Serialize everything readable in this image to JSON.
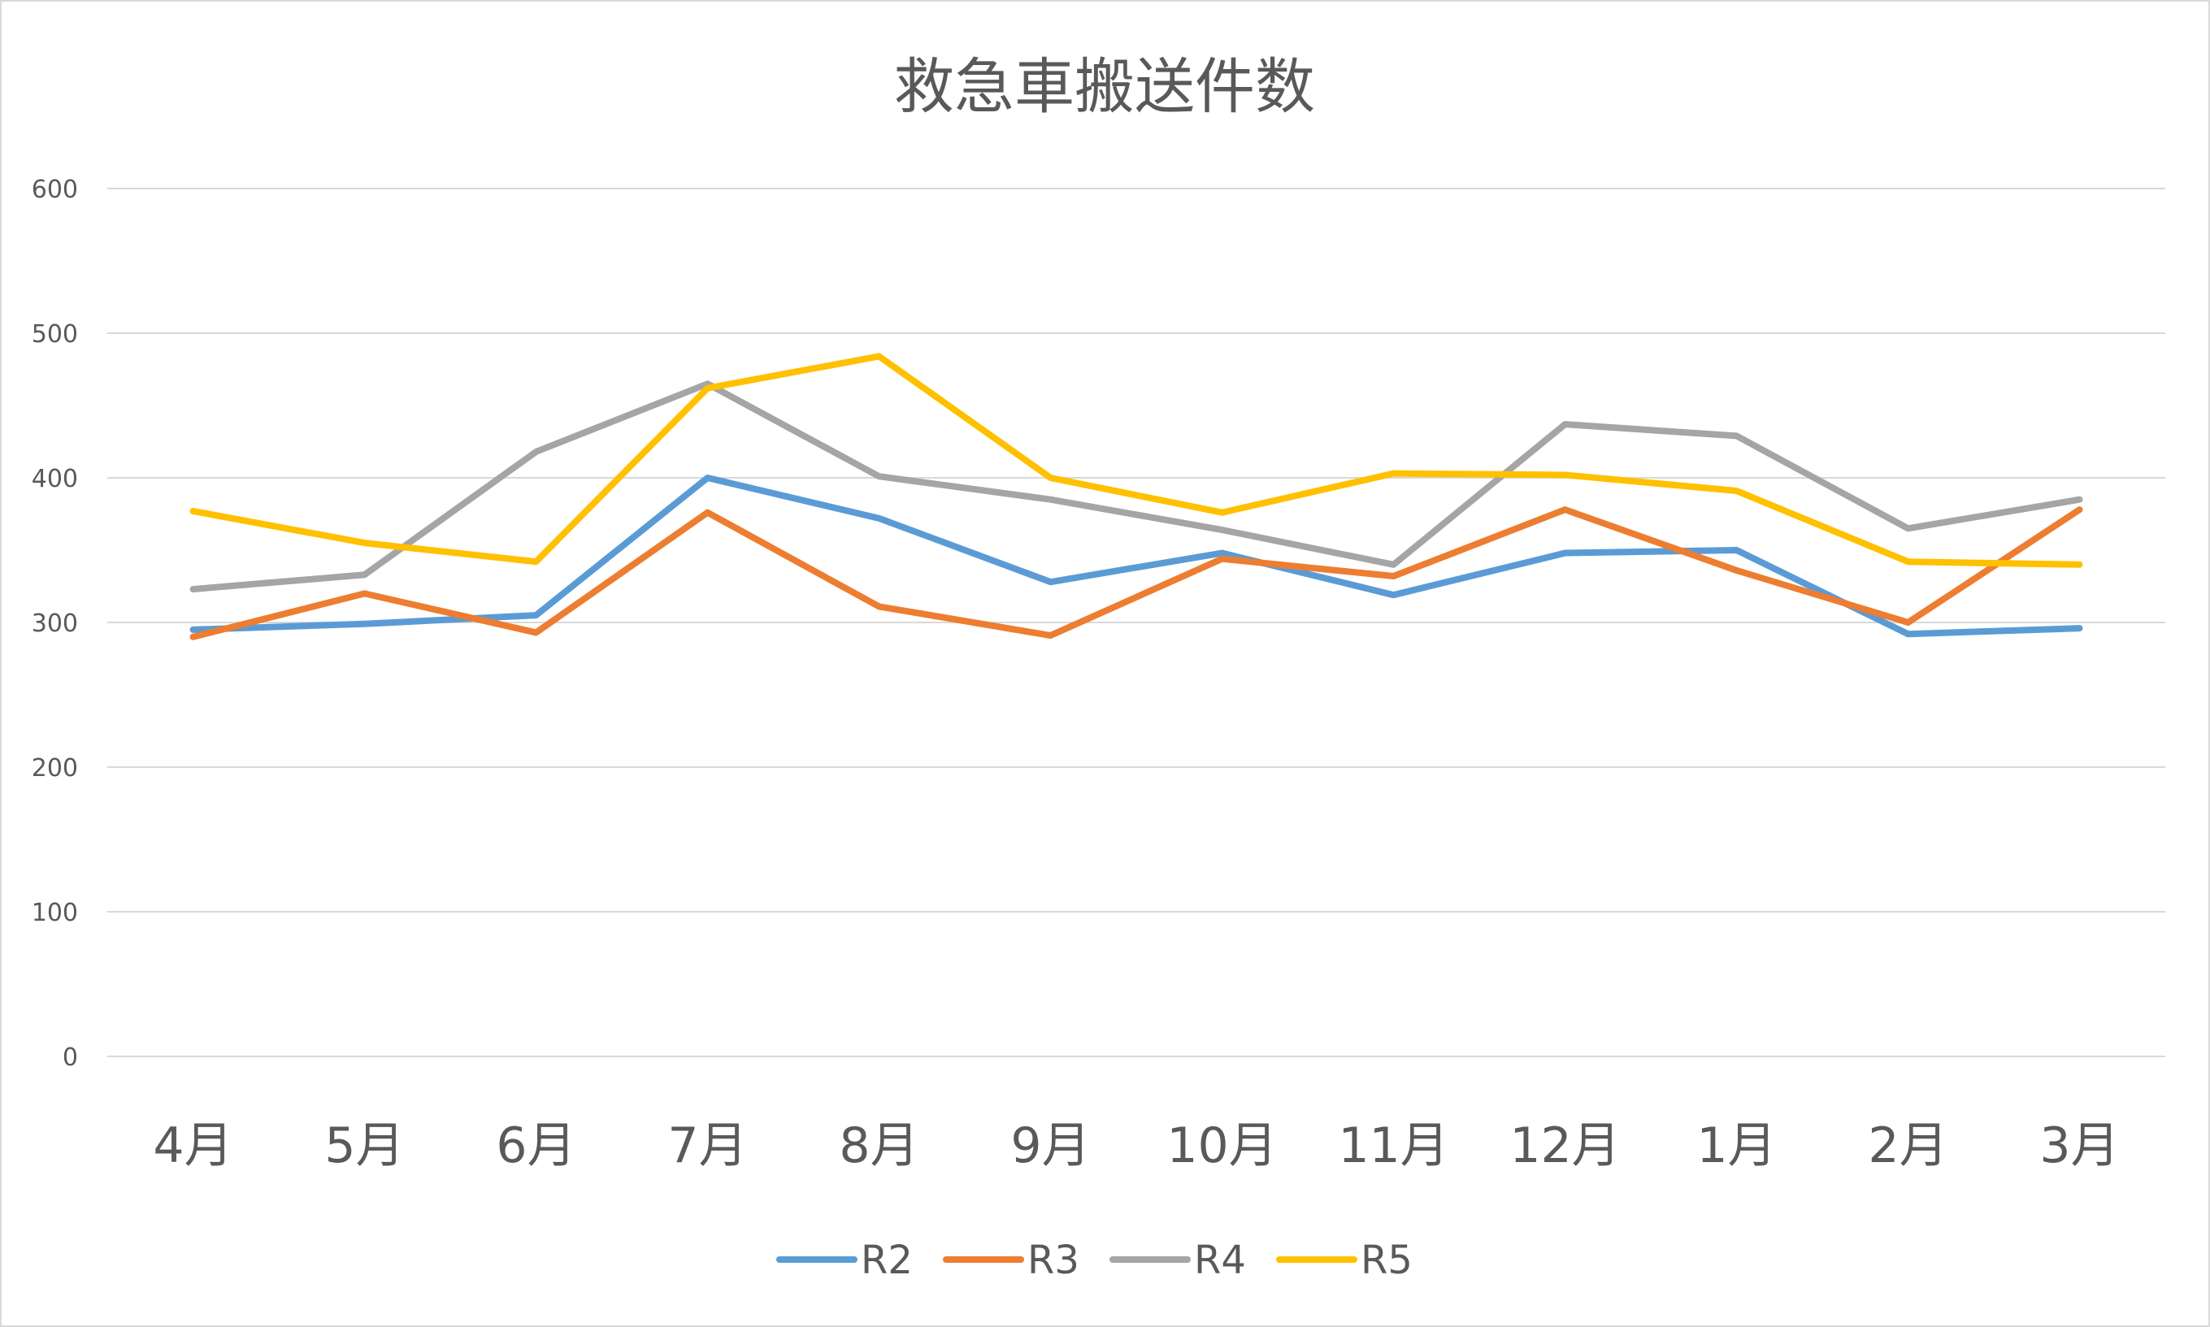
{
  "chart_data": {
    "type": "line",
    "title": "救急車搬送件数",
    "xlabel": "",
    "ylabel": "",
    "categories": [
      "4月",
      "5月",
      "6月",
      "7月",
      "8月",
      "9月",
      "10月",
      "11月",
      "12月",
      "1月",
      "2月",
      "3月"
    ],
    "ylim": [
      0,
      600
    ],
    "yticks": [
      0,
      100,
      200,
      300,
      400,
      500,
      600
    ],
    "grid": true,
    "legend_position": "bottom",
    "series": [
      {
        "name": "R2",
        "color": "#5b9bd5",
        "values": [
          295,
          299,
          305,
          400,
          372,
          328,
          348,
          319,
          348,
          350,
          292,
          296
        ]
      },
      {
        "name": "R3",
        "color": "#ed7d31",
        "values": [
          290,
          320,
          293,
          376,
          311,
          291,
          344,
          332,
          378,
          336,
          300,
          378
        ]
      },
      {
        "name": "R4",
        "color": "#a5a5a5",
        "values": [
          323,
          333,
          418,
          465,
          401,
          385,
          364,
          340,
          437,
          429,
          365,
          385
        ]
      },
      {
        "name": "R5",
        "color": "#ffc000",
        "values": [
          377,
          355,
          342,
          462,
          484,
          400,
          376,
          403,
          402,
          391,
          342,
          340
        ]
      }
    ]
  }
}
